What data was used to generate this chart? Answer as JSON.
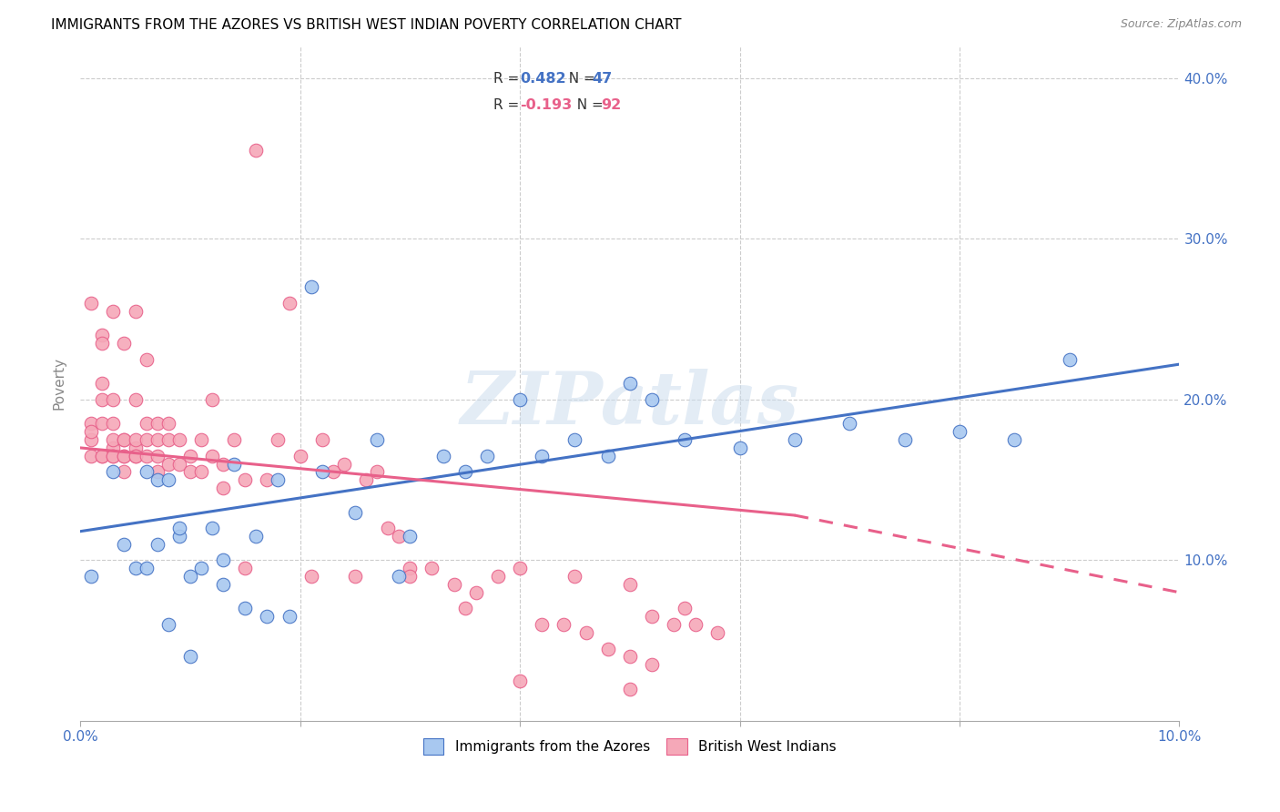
{
  "title": "IMMIGRANTS FROM THE AZORES VS BRITISH WEST INDIAN POVERTY CORRELATION CHART",
  "source": "Source: ZipAtlas.com",
  "ylabel": "Poverty",
  "xlim": [
    0.0,
    0.1
  ],
  "ylim": [
    0.0,
    0.42
  ],
  "blue_R": 0.482,
  "blue_N": 47,
  "pink_R": -0.193,
  "pink_N": 92,
  "blue_color": "#A8C8F0",
  "pink_color": "#F5A8B8",
  "blue_line_color": "#4472C4",
  "pink_line_color": "#E8608A",
  "watermark": "ZIPatlas",
  "legend_label_blue": "Immigrants from the Azores",
  "legend_label_pink": "British West Indians",
  "blue_line_x0": 0.0,
  "blue_line_y0": 0.118,
  "blue_line_x1": 0.1,
  "blue_line_y1": 0.222,
  "pink_line_x0": 0.0,
  "pink_line_y0": 0.17,
  "pink_line_solid_x1": 0.065,
  "pink_line_solid_y1": 0.128,
  "pink_line_x1": 0.1,
  "pink_line_y1": 0.08,
  "blue_scatter_x": [
    0.001,
    0.003,
    0.004,
    0.005,
    0.006,
    0.006,
    0.007,
    0.007,
    0.008,
    0.009,
    0.009,
    0.01,
    0.011,
    0.012,
    0.013,
    0.013,
    0.014,
    0.015,
    0.016,
    0.017,
    0.018,
    0.019,
    0.021,
    0.022,
    0.025,
    0.027,
    0.029,
    0.03,
    0.033,
    0.035,
    0.037,
    0.04,
    0.042,
    0.045,
    0.048,
    0.05,
    0.052,
    0.055,
    0.06,
    0.065,
    0.07,
    0.075,
    0.08,
    0.085,
    0.09,
    0.008,
    0.01
  ],
  "blue_scatter_y": [
    0.09,
    0.155,
    0.11,
    0.095,
    0.155,
    0.095,
    0.15,
    0.11,
    0.15,
    0.115,
    0.12,
    0.09,
    0.095,
    0.12,
    0.1,
    0.085,
    0.16,
    0.07,
    0.115,
    0.065,
    0.15,
    0.065,
    0.27,
    0.155,
    0.13,
    0.175,
    0.09,
    0.115,
    0.165,
    0.155,
    0.165,
    0.2,
    0.165,
    0.175,
    0.165,
    0.21,
    0.2,
    0.175,
    0.17,
    0.175,
    0.185,
    0.175,
    0.18,
    0.175,
    0.225,
    0.06,
    0.04
  ],
  "pink_scatter_x": [
    0.001,
    0.001,
    0.001,
    0.001,
    0.001,
    0.002,
    0.002,
    0.002,
    0.002,
    0.002,
    0.002,
    0.002,
    0.003,
    0.003,
    0.003,
    0.003,
    0.003,
    0.003,
    0.003,
    0.004,
    0.004,
    0.004,
    0.004,
    0.004,
    0.004,
    0.005,
    0.005,
    0.005,
    0.005,
    0.005,
    0.005,
    0.006,
    0.006,
    0.006,
    0.006,
    0.007,
    0.007,
    0.007,
    0.007,
    0.008,
    0.008,
    0.008,
    0.009,
    0.009,
    0.01,
    0.01,
    0.011,
    0.011,
    0.012,
    0.012,
    0.013,
    0.013,
    0.014,
    0.015,
    0.015,
    0.016,
    0.017,
    0.018,
    0.019,
    0.02,
    0.021,
    0.022,
    0.023,
    0.024,
    0.025,
    0.026,
    0.027,
    0.028,
    0.029,
    0.03,
    0.032,
    0.034,
    0.036,
    0.038,
    0.04,
    0.042,
    0.044,
    0.046,
    0.048,
    0.05,
    0.052,
    0.03,
    0.035,
    0.04,
    0.045,
    0.05,
    0.052,
    0.054,
    0.05,
    0.055,
    0.056,
    0.058
  ],
  "pink_scatter_y": [
    0.175,
    0.165,
    0.185,
    0.26,
    0.18,
    0.165,
    0.21,
    0.24,
    0.185,
    0.165,
    0.2,
    0.235,
    0.17,
    0.255,
    0.165,
    0.2,
    0.165,
    0.175,
    0.185,
    0.165,
    0.155,
    0.175,
    0.235,
    0.165,
    0.175,
    0.17,
    0.255,
    0.165,
    0.2,
    0.175,
    0.165,
    0.185,
    0.225,
    0.165,
    0.175,
    0.175,
    0.165,
    0.185,
    0.155,
    0.16,
    0.175,
    0.185,
    0.16,
    0.175,
    0.155,
    0.165,
    0.175,
    0.155,
    0.2,
    0.165,
    0.145,
    0.16,
    0.175,
    0.095,
    0.15,
    0.355,
    0.15,
    0.175,
    0.26,
    0.165,
    0.09,
    0.175,
    0.155,
    0.16,
    0.09,
    0.15,
    0.155,
    0.12,
    0.115,
    0.095,
    0.095,
    0.085,
    0.08,
    0.09,
    0.095,
    0.06,
    0.06,
    0.055,
    0.045,
    0.04,
    0.035,
    0.09,
    0.07,
    0.025,
    0.09,
    0.085,
    0.065,
    0.06,
    0.02,
    0.07,
    0.06,
    0.055
  ]
}
